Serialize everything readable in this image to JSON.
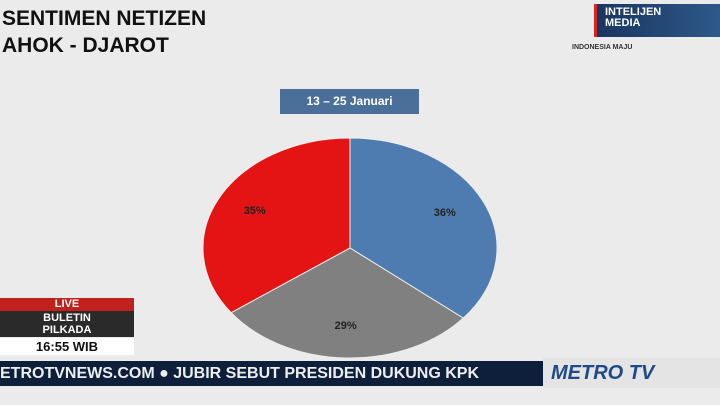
{
  "header": {
    "title_line1": "SENTIMEN NETIZEN",
    "title_line2": "AHOK - DJAROT",
    "watermark": "METROTV NEWS"
  },
  "sponsor": {
    "line1": "INTELIJEN",
    "line2": "MEDIA",
    "sub": "INDONESIA MAJU"
  },
  "chart_data": {
    "type": "pie",
    "title": "13 – 25 Januari",
    "start": "12 o'clock",
    "direction": "clockwise",
    "slices": [
      {
        "label": "36%",
        "value": 36,
        "color": "#4f7cb0"
      },
      {
        "label": "29%",
        "value": 29,
        "color": "#808080"
      },
      {
        "label": "35%",
        "value": 35,
        "color": "#e41414"
      }
    ]
  },
  "live": {
    "live": "LIVE",
    "program1": "BULETIN",
    "program2": "PILKADA",
    "time": "16:55 WIB"
  },
  "ticker": {
    "text": "ETROTVNEWS.COM  ●  JUBIR SEBUT PRESIDEN DUKUNG KPK"
  },
  "brand": {
    "name": "METRO TV"
  }
}
